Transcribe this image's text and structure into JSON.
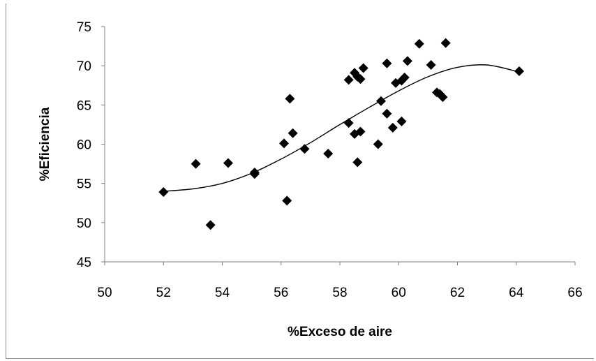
{
  "chart_data": {
    "type": "scatter",
    "title": "",
    "xlabel": "%Exceso de aire",
    "ylabel": "%Eficiencia",
    "xlim": [
      50,
      66
    ],
    "ylim": [
      45,
      75
    ],
    "x_ticks": [
      50,
      52,
      54,
      56,
      58,
      60,
      62,
      64,
      66
    ],
    "y_ticks": [
      45,
      50,
      55,
      60,
      65,
      70,
      75
    ],
    "grid": false,
    "legend": "none",
    "marker": "diamond",
    "marker_color": "#000000",
    "series": [
      {
        "points": [
          [
            52.0,
            53.9
          ],
          [
            53.1,
            57.5
          ],
          [
            53.6,
            49.7
          ],
          [
            54.2,
            57.6
          ],
          [
            55.1,
            56.4
          ],
          [
            55.1,
            56.2
          ],
          [
            56.1,
            60.1
          ],
          [
            56.2,
            52.8
          ],
          [
            56.3,
            65.8
          ],
          [
            56.4,
            61.4
          ],
          [
            56.8,
            59.4
          ],
          [
            57.6,
            58.8
          ],
          [
            58.3,
            62.7
          ],
          [
            58.3,
            68.2
          ],
          [
            58.5,
            61.3
          ],
          [
            58.5,
            69.1
          ],
          [
            58.6,
            57.7
          ],
          [
            58.6,
            68.6
          ],
          [
            58.7,
            68.3
          ],
          [
            58.7,
            61.6
          ],
          [
            58.8,
            69.7
          ],
          [
            59.3,
            60.0
          ],
          [
            59.4,
            65.5
          ],
          [
            59.6,
            70.3
          ],
          [
            59.6,
            63.9
          ],
          [
            59.8,
            62.1
          ],
          [
            59.9,
            67.8
          ],
          [
            60.1,
            62.9
          ],
          [
            60.1,
            68.1
          ],
          [
            60.2,
            68.5
          ],
          [
            60.3,
            70.6
          ],
          [
            60.7,
            72.8
          ],
          [
            61.1,
            70.1
          ],
          [
            61.3,
            66.6
          ],
          [
            61.4,
            66.4
          ],
          [
            61.5,
            66.0
          ],
          [
            61.6,
            72.9
          ],
          [
            64.1,
            69.3
          ]
        ]
      }
    ],
    "trendline": {
      "type": "polynomial",
      "points": [
        [
          52.0,
          54.0
        ],
        [
          53.0,
          54.3
        ],
        [
          54.0,
          55.0
        ],
        [
          55.0,
          56.3
        ],
        [
          56.0,
          58.1
        ],
        [
          57.0,
          60.2
        ],
        [
          58.0,
          62.5
        ],
        [
          59.0,
          64.7
        ],
        [
          60.0,
          66.8
        ],
        [
          61.0,
          68.6
        ],
        [
          62.0,
          69.8
        ],
        [
          63.0,
          70.1
        ],
        [
          64.0,
          69.3
        ]
      ]
    }
  }
}
